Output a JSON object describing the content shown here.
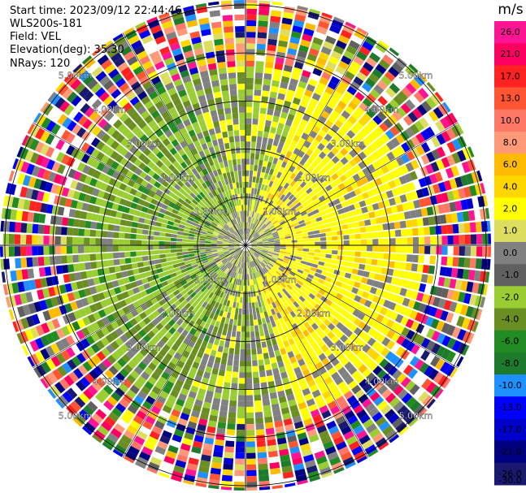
{
  "header": {
    "start_time": "Start time: 2023/09/12 22:44:46",
    "instrument": "WLS200s-181",
    "field": "Field: VEL",
    "elevation": "Elevation(deg): 35.30",
    "nrays": "NRays: 120"
  },
  "colorbar": {
    "unit": "m/s",
    "ticks": [
      "26.0",
      "21.0",
      "17.0",
      "13.0",
      "10.0",
      "8.0",
      "6.0",
      "4.0",
      "2.0",
      "1.0",
      "0.0",
      "-1.0",
      "-2.0",
      "-4.0",
      "-6.0",
      "-8.0",
      "-10.0",
      "-13.0",
      "-17.0",
      "-21.0",
      "-26.0",
      "-30.0"
    ],
    "colors": [
      "#ff1493",
      "#ff0060",
      "#ff2222",
      "#ff5533",
      "#ff7766",
      "#ff9977",
      "#ffbb00",
      "#ffd700",
      "#ffff00",
      "#dddd60",
      "#808080",
      "#606060",
      "#9acd32",
      "#6b8e23",
      "#228b22",
      "#1e7b2e",
      "#1e90ff",
      "#0000ff",
      "#0000cd",
      "#000080",
      "#191970"
    ]
  },
  "chart_data": {
    "type": "ppi",
    "field": "VEL",
    "unit": "m/s",
    "nrays": 120,
    "range_labels": [
      "1.00km",
      "2.00km",
      "3.00km",
      "4.00km",
      "5.00km"
    ],
    "ring_ranges_km": [
      1,
      2,
      3,
      4,
      5
    ],
    "max_range_km": 5.1,
    "sectors": [
      {
        "name": "north-east",
        "dominant": "2.0 to 4.0 (yellow)"
      },
      {
        "name": "south-west",
        "dominant": "-2.0 to -4.0 (green)"
      },
      {
        "name": "outer rings",
        "dominant": "mixed noise"
      }
    ]
  }
}
